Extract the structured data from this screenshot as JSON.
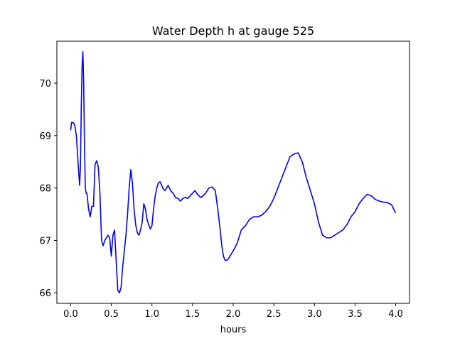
{
  "chart_data": {
    "type": "line",
    "title": "Water Depth h at gauge 525",
    "xlabel": "hours",
    "ylabel": "",
    "xlim": [
      -0.17,
      4.17
    ],
    "ylim": [
      65.8,
      70.8
    ],
    "x_ticks": [
      0.0,
      0.5,
      1.0,
      1.5,
      2.0,
      2.5,
      3.0,
      3.5,
      4.0
    ],
    "x_tick_labels": [
      "0.0",
      "0.5",
      "1.0",
      "1.5",
      "2.0",
      "2.5",
      "3.0",
      "3.5",
      "4.0"
    ],
    "y_ticks": [
      66,
      67,
      68,
      69,
      70
    ],
    "y_tick_labels": [
      "66",
      "67",
      "68",
      "69",
      "70"
    ],
    "grid": false,
    "line_color": "#0000ff",
    "series": [
      {
        "x": [
          0.0,
          0.01,
          0.03,
          0.05,
          0.07,
          0.09,
          0.11,
          0.12,
          0.13,
          0.14,
          0.15,
          0.16,
          0.17,
          0.18,
          0.19,
          0.2,
          0.22,
          0.24,
          0.26,
          0.28,
          0.3,
          0.32,
          0.34,
          0.36,
          0.38,
          0.4,
          0.42,
          0.44,
          0.46,
          0.48,
          0.5,
          0.52,
          0.54,
          0.56,
          0.58,
          0.6,
          0.62,
          0.64,
          0.66,
          0.68,
          0.7,
          0.72,
          0.74,
          0.76,
          0.78,
          0.8,
          0.82,
          0.84,
          0.86,
          0.88,
          0.9,
          0.92,
          0.94,
          0.96,
          0.98,
          1.0,
          1.02,
          1.04,
          1.06,
          1.08,
          1.1,
          1.12,
          1.14,
          1.16,
          1.18,
          1.2,
          1.23,
          1.26,
          1.29,
          1.32,
          1.35,
          1.38,
          1.41,
          1.44,
          1.47,
          1.5,
          1.53,
          1.56,
          1.6,
          1.63,
          1.66,
          1.7,
          1.74,
          1.78,
          1.81,
          1.84,
          1.86,
          1.88,
          1.9,
          1.92,
          1.94,
          1.96,
          1.98,
          2.0,
          2.05,
          2.1,
          2.15,
          2.2,
          2.25,
          2.3,
          2.35,
          2.4,
          2.45,
          2.5,
          2.55,
          2.6,
          2.65,
          2.7,
          2.75,
          2.8,
          2.85,
          2.9,
          2.95,
          3.0,
          3.05,
          3.1,
          3.15,
          3.2,
          3.25,
          3.3,
          3.35,
          3.4,
          3.45,
          3.5,
          3.55,
          3.6,
          3.65,
          3.7,
          3.75,
          3.8,
          3.85,
          3.9,
          3.95,
          4.0
        ],
        "values": [
          69.1,
          69.25,
          69.25,
          69.2,
          69.0,
          68.5,
          68.05,
          68.4,
          69.5,
          70.3,
          70.6,
          70.0,
          68.8,
          68.0,
          67.9,
          67.9,
          67.6,
          67.45,
          67.65,
          67.65,
          68.45,
          68.52,
          68.4,
          67.9,
          67.0,
          66.9,
          67.0,
          67.05,
          67.1,
          67.05,
          66.7,
          67.1,
          67.2,
          66.6,
          66.05,
          66.0,
          66.1,
          66.5,
          66.8,
          67.1,
          67.5,
          68.0,
          68.35,
          68.1,
          67.6,
          67.3,
          67.15,
          67.1,
          67.2,
          67.35,
          67.7,
          67.6,
          67.4,
          67.3,
          67.22,
          67.28,
          67.6,
          67.85,
          68.0,
          68.1,
          68.12,
          68.05,
          67.98,
          67.95,
          68.0,
          68.05,
          67.95,
          67.9,
          67.82,
          67.8,
          67.75,
          67.8,
          67.82,
          67.8,
          67.85,
          67.9,
          67.95,
          67.88,
          67.82,
          67.85,
          67.9,
          68.0,
          68.02,
          67.95,
          67.6,
          67.2,
          66.9,
          66.7,
          66.62,
          66.62,
          66.65,
          66.7,
          66.75,
          66.8,
          66.95,
          67.2,
          67.28,
          67.4,
          67.45,
          67.45,
          67.48,
          67.55,
          67.65,
          67.8,
          68.0,
          68.2,
          68.4,
          68.6,
          68.65,
          68.67,
          68.5,
          68.2,
          67.95,
          67.7,
          67.35,
          67.1,
          67.05,
          67.05,
          67.1,
          67.15,
          67.2,
          67.3,
          67.45,
          67.55,
          67.7,
          67.8,
          67.88,
          67.85,
          67.78,
          67.75,
          67.73,
          67.72,
          67.68,
          67.52
        ]
      }
    ]
  }
}
